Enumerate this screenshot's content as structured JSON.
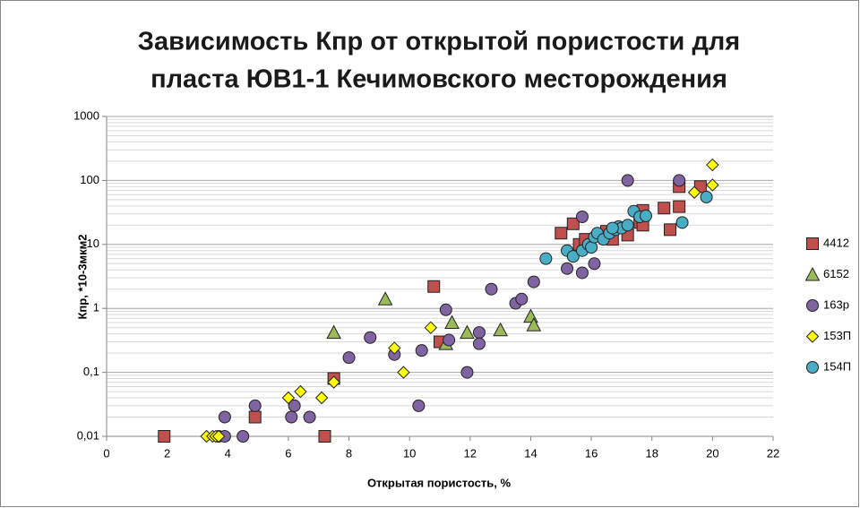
{
  "chart_data": {
    "type": "scatter",
    "title": [
      "Зависимость Кпр от открытой пористости для",
      "пласта ЮВ1-1 Кечимовского месторождения"
    ],
    "xlabel": "Открытая пористость, %",
    "ylabel": "Кпр, *10-3мкм2",
    "xlim": [
      0,
      22
    ],
    "xticks": [
      0,
      2,
      4,
      6,
      8,
      10,
      12,
      14,
      16,
      18,
      20,
      22
    ],
    "ylim": [
      0.01,
      1000
    ],
    "ylog": true,
    "yticks": [
      {
        "value": 0.01,
        "label": "0,01"
      },
      {
        "value": 0.1,
        "label": "0,1"
      },
      1,
      10,
      100,
      1000
    ],
    "y_minor_ticks": [
      0.02,
      0.03,
      0.04,
      0.05,
      0.06,
      0.07,
      0.08,
      0.09,
      0.2,
      0.3,
      0.4,
      0.5,
      0.6,
      0.7,
      0.8,
      0.9,
      2,
      3,
      4,
      5,
      6,
      7,
      8,
      9,
      20,
      30,
      40,
      50,
      60,
      70,
      80,
      90,
      200,
      300,
      400,
      500,
      600,
      700,
      800,
      900
    ],
    "grid": true,
    "legend": "right",
    "series": [
      {
        "name": "4412",
        "color": "#c0504d",
        "marker": "square",
        "x": [
          1.9,
          4.9,
          7.2,
          7.5,
          10.8,
          11.0,
          15.0,
          15.4,
          15.6,
          15.8,
          16.5,
          17.2,
          17.6,
          17.7,
          18.4,
          18.6,
          18.9,
          18.9,
          19.6,
          17.7,
          16.7
        ],
        "values": [
          0.01,
          0.02,
          0.01,
          0.08,
          2.2,
          0.3,
          15,
          21,
          10,
          12,
          16,
          14,
          22,
          34,
          37,
          17,
          80,
          39,
          80,
          20,
          12
        ]
      },
      {
        "name": "6152",
        "color": "#9bbb59",
        "marker": "triangle",
        "x": [
          7.5,
          9.2,
          11.2,
          11.4,
          11.9,
          13.0,
          14.0,
          14.1
        ],
        "values": [
          0.42,
          1.4,
          0.28,
          0.6,
          0.42,
          0.46,
          0.75,
          0.55
        ]
      },
      {
        "name": "163р",
        "color": "#8064a2",
        "marker": "circle",
        "x": [
          3.7,
          3.9,
          3.9,
          4.5,
          4.9,
          6.1,
          6.2,
          6.7,
          8.0,
          8.7,
          9.5,
          10.3,
          10.4,
          11.2,
          11.3,
          11.9,
          12.3,
          12.3,
          12.7,
          13.5,
          13.7,
          14.1,
          15.2,
          15.7,
          15.7,
          16.1,
          17.2,
          18.9
        ],
        "values": [
          0.01,
          0.02,
          0.01,
          0.01,
          0.03,
          0.02,
          0.03,
          0.02,
          0.17,
          0.35,
          0.19,
          0.03,
          0.22,
          0.95,
          0.32,
          0.1,
          0.42,
          0.28,
          2.0,
          1.2,
          1.4,
          2.6,
          4.2,
          3.6,
          27,
          5,
          100,
          100
        ]
      },
      {
        "name": "153П",
        "color": "#ffff00",
        "marker": "diamond",
        "x": [
          3.3,
          3.5,
          3.6,
          3.7,
          6.0,
          6.4,
          7.1,
          7.5,
          9.5,
          9.8,
          10.7,
          19.4,
          20.0,
          20.0
        ],
        "values": [
          0.01,
          0.01,
          0.01,
          0.01,
          0.04,
          0.05,
          0.04,
          0.07,
          0.24,
          0.1,
          0.5,
          65,
          175,
          85
        ]
      },
      {
        "name": "154П",
        "color": "#4bacc6",
        "marker": "circle",
        "x": [
          14.5,
          15.2,
          15.4,
          15.7,
          15.9,
          16.0,
          16.1,
          16.2,
          16.4,
          16.6,
          16.8,
          16.9,
          17.0,
          17.4,
          17.6,
          17.8,
          19.8,
          19.0,
          17.2,
          16.7
        ],
        "values": [
          6,
          8,
          6.5,
          8,
          10,
          9,
          13,
          15,
          12,
          15,
          17,
          19,
          18,
          33,
          27,
          28,
          55,
          22,
          20,
          18
        ]
      }
    ]
  }
}
